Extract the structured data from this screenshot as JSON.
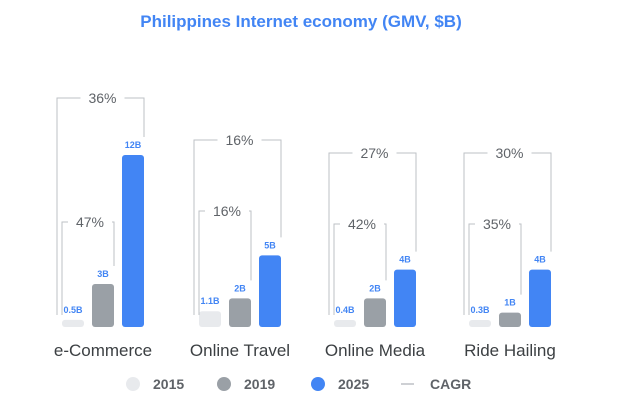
{
  "chart_data": {
    "type": "bar",
    "title": "Philippines Internet economy (GMV, $B)",
    "categories": [
      "e-Commerce",
      "Online Travel",
      "Online Media",
      "Ride Hailing"
    ],
    "series": [
      {
        "name": "2015",
        "values": [
          0.5,
          1.1,
          0.4,
          0.3
        ],
        "labels": [
          "0.5B",
          "1.1B",
          "0.4B",
          "0.3B"
        ],
        "color": "#e8eaed",
        "label_color": "#4285f4"
      },
      {
        "name": "2019",
        "values": [
          3,
          2,
          2,
          1
        ],
        "labels": [
          "3B",
          "2B",
          "2B",
          "1B"
        ],
        "color": "#9aa0a6",
        "label_color": "#4285f4"
      },
      {
        "name": "2025",
        "values": [
          12,
          5,
          4,
          4
        ],
        "labels": [
          "12B",
          "5B",
          "4B",
          "4B"
        ],
        "color": "#4285f4",
        "label_color": "#4285f4"
      }
    ],
    "cagr_2015_2019": [
      "47%",
      "16%",
      "42%",
      "35%"
    ],
    "cagr_2015_2025": [
      "36%",
      "16%",
      "27%",
      "30%"
    ],
    "legend_cagr_label": "CAGR",
    "legend_position": "bottom",
    "ylim": [
      0,
      12
    ],
    "grid": false,
    "colors": {
      "title": "#4285f4",
      "bracket": "#bdc1c6"
    }
  }
}
